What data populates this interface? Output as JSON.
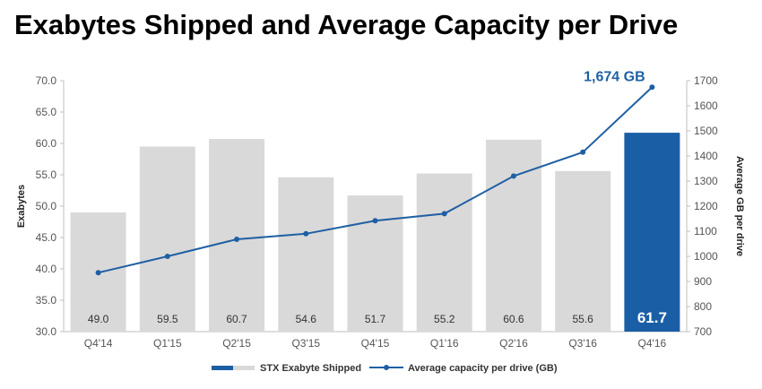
{
  "title": "Exabytes Shipped and Average Capacity per Drive",
  "colors": {
    "bar": "#d9d9d9",
    "highlight_bar": "#1a5fa5",
    "line": "#1f5fa3"
  },
  "chart_data": {
    "type": "bar+line",
    "title": "Exabytes Shipped and Average Capacity per Drive",
    "categories": [
      "Q4'14",
      "Q1'15",
      "Q2'15",
      "Q3'15",
      "Q4'15",
      "Q1'16",
      "Q2'16",
      "Q3'16",
      "Q4'16"
    ],
    "ylabel": "Exabytes",
    "y2label": "Average GB per drive",
    "ylim": [
      30,
      70
    ],
    "yticks": [
      "30.0",
      "35.0",
      "40.0",
      "45.0",
      "50.0",
      "55.0",
      "60.0",
      "65.0",
      "70.0"
    ],
    "y2lim": [
      700,
      1700
    ],
    "y2ticks": [
      "700",
      "800",
      "900",
      "1000",
      "1100",
      "1200",
      "1300",
      "1400",
      "1500",
      "1600",
      "1700"
    ],
    "grid": false,
    "legend_position": "bottom",
    "highlight_index": 8,
    "series": [
      {
        "name": "STX Exabyte Shipped",
        "type": "bar",
        "axis": "left",
        "values": [
          49.0,
          59.5,
          60.7,
          54.6,
          51.7,
          55.2,
          60.6,
          55.6,
          61.7
        ],
        "labels": [
          "49.0",
          "59.5",
          "60.7",
          "54.6",
          "51.7",
          "55.2",
          "60.6",
          "55.6",
          "61.7"
        ]
      },
      {
        "name": "Average capacity per drive (GB)",
        "type": "line",
        "axis": "right",
        "values": [
          935,
          1000,
          1068,
          1090,
          1142,
          1170,
          1320,
          1415,
          1674
        ]
      }
    ],
    "annotations": [
      {
        "text": "1,674 GB",
        "series": 1,
        "index": 8
      }
    ]
  }
}
